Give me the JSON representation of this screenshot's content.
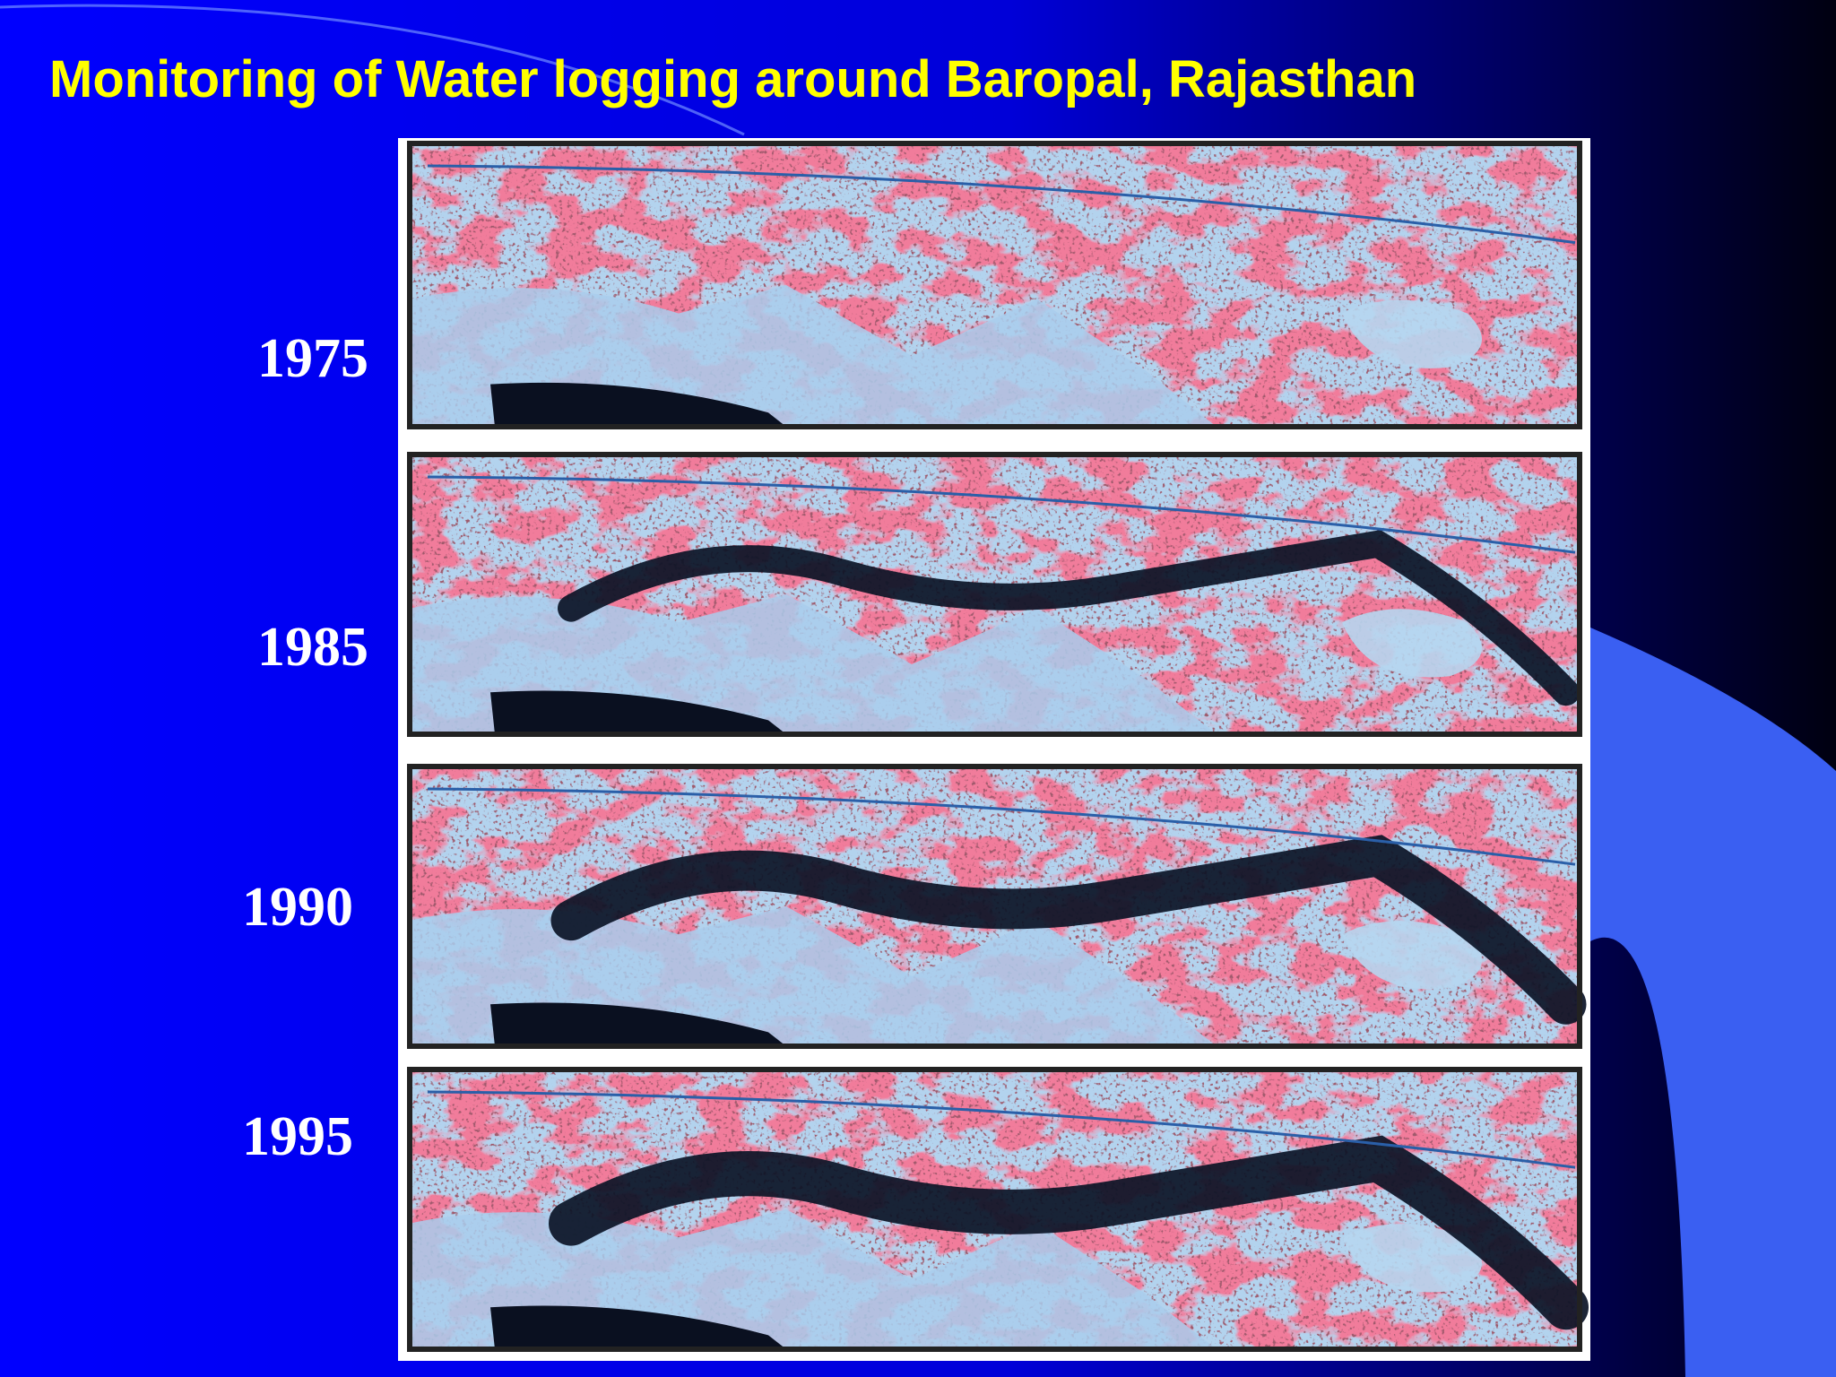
{
  "title": "Monitoring of Water logging around Baropal, Rajasthan",
  "panels": [
    {
      "year": "1975"
    },
    {
      "year": "1985"
    },
    {
      "year": "1990"
    },
    {
      "year": "1995"
    }
  ]
}
